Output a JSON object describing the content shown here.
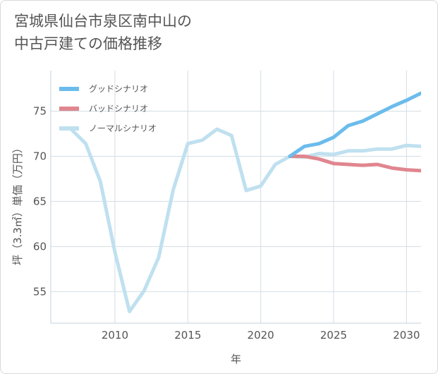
{
  "title": {
    "line1": "宮城県仙台市泉区南中山の",
    "line2": "中古戸建ての価格推移"
  },
  "chart_data": {
    "type": "line",
    "xlabel": "年",
    "ylabel": "坪（3.3㎡）単価（万円）",
    "xlim": [
      2005.6,
      2031
    ],
    "ylim": [
      51.5,
      79.5
    ],
    "x_ticks": [
      2010,
      2015,
      2020,
      2025,
      2030
    ],
    "y_ticks": [
      55,
      60,
      65,
      70,
      75
    ],
    "grid": true,
    "legend_position": "top-left",
    "series": [
      {
        "name": "グッドシナリオ",
        "color": "#6bbcec",
        "x": [
          2022,
          2023,
          2024,
          2025,
          2026,
          2027,
          2028,
          2029,
          2030,
          2031
        ],
        "y": [
          70.0,
          71.1,
          71.4,
          72.1,
          73.4,
          73.9,
          74.7,
          75.5,
          76.2,
          77.0
        ]
      },
      {
        "name": "バッドシナリオ",
        "color": "#e0868f",
        "x": [
          2022,
          2023,
          2024,
          2025,
          2026,
          2027,
          2028,
          2029,
          2030,
          2031
        ],
        "y": [
          70.0,
          70.0,
          69.7,
          69.2,
          69.1,
          69.0,
          69.1,
          68.7,
          68.5,
          68.4
        ]
      },
      {
        "name": "ノーマルシナリオ",
        "color": "#bfe0ef",
        "x": [
          2007,
          2008,
          2009,
          2010,
          2011,
          2012,
          2013,
          2014,
          2015,
          2016,
          2017,
          2018,
          2019,
          2020,
          2021,
          2022,
          2023,
          2024,
          2025,
          2026,
          2027,
          2028,
          2029,
          2030,
          2031
        ],
        "y": [
          73.0,
          71.4,
          67.2,
          59.4,
          52.8,
          55.1,
          58.8,
          66.3,
          71.4,
          71.8,
          73.0,
          72.3,
          66.2,
          66.7,
          69.1,
          70.0,
          69.9,
          70.3,
          70.2,
          70.6,
          70.6,
          70.8,
          70.8,
          71.2,
          71.1
        ]
      }
    ]
  }
}
